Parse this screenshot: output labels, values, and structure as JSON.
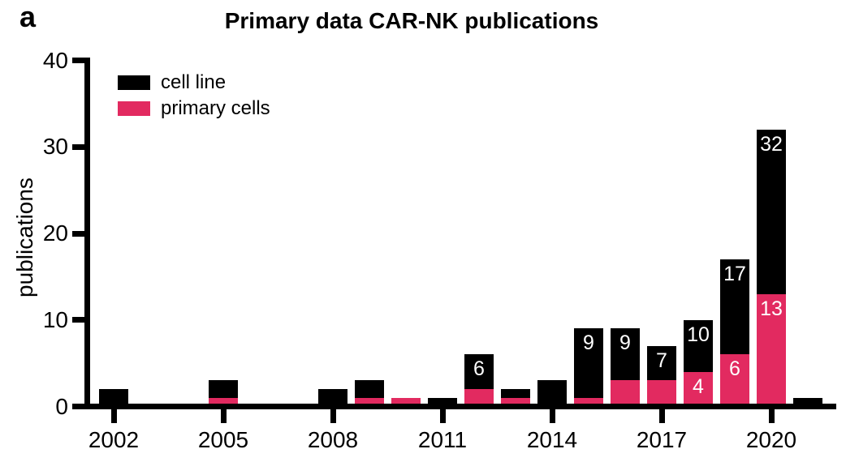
{
  "panel_label": "a",
  "legend": [
    {
      "label": "cell line",
      "color": "#000000"
    },
    {
      "label": "primary cells",
      "color": "#E22A60"
    }
  ],
  "chart_data": {
    "type": "bar",
    "stacked": true,
    "title": "Primary data CAR-NK publications",
    "xlabel": "",
    "ylabel": "publications",
    "ylim": [
      0,
      40
    ],
    "yticks": [
      0,
      10,
      20,
      30,
      40
    ],
    "xtick_years": [
      2002,
      2005,
      2008,
      2011,
      2014,
      2017,
      2020
    ],
    "categories": [
      2002,
      2003,
      2004,
      2005,
      2006,
      2007,
      2008,
      2009,
      2010,
      2011,
      2012,
      2013,
      2014,
      2015,
      2016,
      2017,
      2018,
      2019,
      2020,
      2021
    ],
    "series": [
      {
        "name": "primary cells",
        "color": "#E22A60",
        "values": [
          0,
          0,
          0,
          1,
          0,
          0,
          0,
          1,
          1,
          0,
          2,
          1,
          0,
          1,
          3,
          3,
          4,
          6,
          13,
          0
        ]
      },
      {
        "name": "cell line",
        "color": "#000000",
        "values": [
          2,
          0,
          0,
          2,
          0,
          0,
          2,
          2,
          0,
          1,
          4,
          1,
          3,
          8,
          6,
          4,
          6,
          11,
          19,
          1
        ]
      }
    ],
    "totals": [
      2,
      0,
      0,
      3,
      0,
      0,
      2,
      3,
      1,
      1,
      6,
      2,
      3,
      9,
      9,
      7,
      10,
      17,
      32,
      1
    ],
    "bar_labels": [
      {
        "year": 2012,
        "total_label": "6"
      },
      {
        "year": 2015,
        "total_label": "9"
      },
      {
        "year": 2016,
        "total_label": "9"
      },
      {
        "year": 2017,
        "total_label": "7"
      },
      {
        "year": 2018,
        "total_label": "10",
        "primary_label": "4"
      },
      {
        "year": 2019,
        "total_label": "17",
        "primary_label": "6"
      },
      {
        "year": 2020,
        "total_label": "32",
        "primary_label": "13"
      }
    ],
    "legend_position": "upper-left",
    "grid": false
  }
}
